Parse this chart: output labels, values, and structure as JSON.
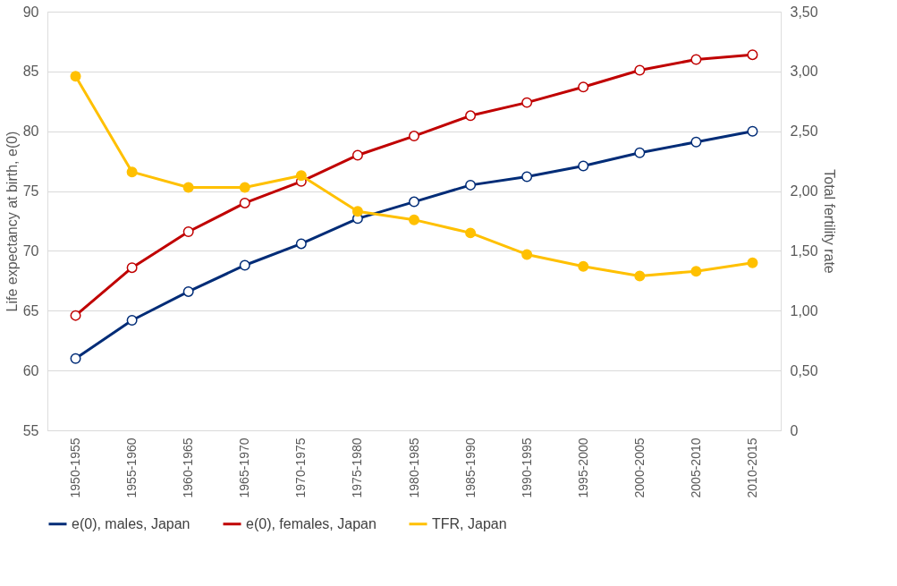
{
  "chart_data": {
    "type": "line",
    "categories": [
      "1950-1955",
      "1955-1960",
      "1960-1965",
      "1965-1970",
      "1970-1975",
      "1975-1980",
      "1980-1985",
      "1985-1990",
      "1990-1995",
      "1995-2000",
      "2000-2005",
      "2005-2010",
      "2010-2015"
    ],
    "ylabel": "Life expectancy at birth, e(0)",
    "y2label": "Total fertility rate",
    "ylim": [
      55,
      90
    ],
    "yticks": [
      55,
      60,
      65,
      70,
      75,
      80,
      85,
      90
    ],
    "y2lim": [
      0,
      3.5
    ],
    "y2ticks": [
      0,
      {
        "value": 0.5,
        "label": "0,50"
      },
      {
        "value": 1,
        "label": "1,00"
      },
      {
        "value": 1.5,
        "label": "1,50"
      },
      {
        "value": 2,
        "label": "2,00"
      },
      {
        "value": 2.5,
        "label": "2,50"
      },
      {
        "value": 3,
        "label": "3,00"
      },
      {
        "value": 3.5,
        "label": "3,50"
      }
    ],
    "series": [
      {
        "name": "e(0), males, Japan",
        "color": "#002c77",
        "axis": "y",
        "values": [
          61.0,
          64.2,
          66.6,
          68.8,
          70.6,
          72.7,
          74.1,
          75.5,
          76.2,
          77.1,
          78.2,
          79.1,
          80.0
        ]
      },
      {
        "name": "e(0), females, Japan",
        "color": "#c00000",
        "axis": "y",
        "values": [
          64.6,
          68.6,
          71.6,
          74.0,
          75.8,
          78.0,
          79.6,
          81.3,
          82.4,
          83.7,
          85.1,
          86.0,
          86.4
        ]
      },
      {
        "name": "TFR, Japan",
        "color": "#ffc000",
        "axis": "y2",
        "values": [
          2.96,
          2.16,
          2.03,
          2.03,
          2.13,
          1.83,
          1.76,
          1.65,
          1.47,
          1.37,
          1.29,
          1.33,
          1.4
        ]
      }
    ],
    "grid": "y",
    "legend": "bottom",
    "marker": "circle",
    "line_style": "solid"
  }
}
